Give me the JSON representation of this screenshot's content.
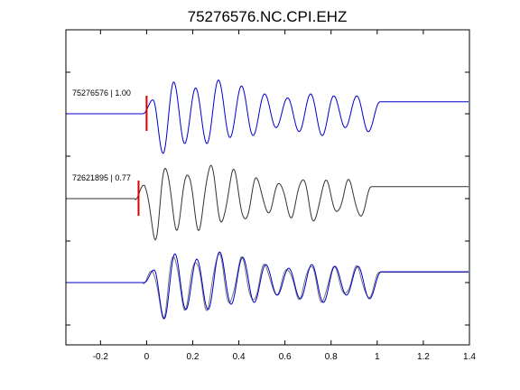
{
  "chart_data": {
    "type": "line",
    "title": "75276576.NC.CPI.EHZ",
    "xlabel": "",
    "ylabel": "",
    "xlim": [
      -0.35,
      1.4
    ],
    "x_ticks": [
      -0.2,
      0,
      0.2,
      0.4,
      0.6,
      0.8,
      1.0,
      1.2,
      1.4
    ],
    "x_tick_labels": [
      "-0.2",
      "0",
      "0.2",
      "0.4",
      "0.6",
      "0.8",
      "1",
      "1.2",
      "1.4"
    ],
    "grid": false,
    "colors": {
      "primary": "#0000cc",
      "secondary": "#333333",
      "overlay_secondary": "#777777",
      "pick": "#dd0000"
    },
    "traces": [
      {
        "name": "75276576 | 1.00",
        "color": "#0000cc",
        "pick_time": 0.0
      },
      {
        "name": "72621895 | 0.77",
        "color": "#333333",
        "pick_time": -0.035
      },
      {
        "name": "",
        "color": "#0000cc",
        "overlay": true
      }
    ],
    "waveform": {
      "onset": -0.015,
      "periods": [
        0.085,
        0.088,
        0.092,
        0.095,
        0.095,
        0.098,
        0.1,
        0.1,
        0.1,
        0.1,
        0.1,
        0.1,
        0.1,
        0.1,
        0.1,
        0.1,
        0.1,
        0.1,
        0.1,
        0.1,
        0.1
      ],
      "amplitudes": [
        0.35,
        -1.0,
        0.8,
        -0.75,
        0.65,
        -0.75,
        0.85,
        -0.6,
        0.7,
        -0.55,
        0.5,
        -0.35,
        0.4,
        -0.45,
        0.5,
        -0.55,
        0.45,
        -0.35,
        0.45,
        -0.45,
        0.3
      ]
    }
  }
}
